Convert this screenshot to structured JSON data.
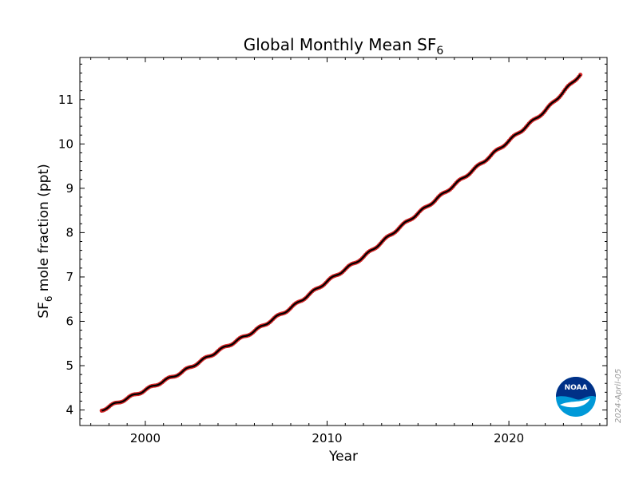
{
  "chart_data": {
    "type": "scatter",
    "title": {
      "main": "Global Monthly Mean SF",
      "sub": "6"
    },
    "xlabel": "Year",
    "ylabel": {
      "pre": "SF",
      "sub": "6",
      "post": " mole fraction (ppt)"
    },
    "xlim": [
      1996.4,
      2025.4
    ],
    "ylim": [
      3.65,
      11.95
    ],
    "x_ticks": [
      2000,
      2010,
      2020
    ],
    "y_ticks": [
      4,
      5,
      6,
      7,
      8,
      9,
      10,
      11
    ],
    "series": [
      {
        "marker_color": "#d62728",
        "line_color": "#000000",
        "x_start": "1997-08",
        "x_end": "2024-01",
        "x_anchor": [
          1997.6,
          2000.0,
          2002.0,
          2004.0,
          2006.0,
          2008.0,
          2010.0,
          2012.0,
          2014.0,
          2016.0,
          2018.0,
          2020.0,
          2022.0,
          2024.0
        ],
        "y_anchor": [
          4.0,
          4.45,
          4.85,
          5.33,
          5.78,
          6.3,
          6.9,
          7.45,
          8.12,
          8.75,
          9.4,
          10.07,
          10.75,
          11.6
        ]
      }
    ]
  },
  "stamp": "2024-April-05",
  "logo": {
    "text": "NOAA",
    "colors": {
      "top": "#003087",
      "bottom": "#0099d8"
    }
  }
}
